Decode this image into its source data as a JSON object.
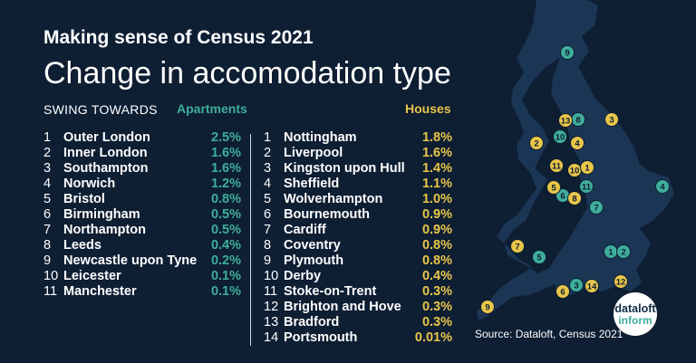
{
  "kicker": "Making sense of Census 2021",
  "headline": "Change in accomodation type",
  "swing_label": "SWING TOWARDS",
  "colors": {
    "background": "#0e1e33",
    "apartments": "#3fae9b",
    "houses": "#e8c64a",
    "map_fill": "#1b3654",
    "text": "#ffffff"
  },
  "apartments": {
    "header": "Apartments",
    "rows": [
      {
        "rank": "1",
        "name": "Outer London",
        "value": "2.5%"
      },
      {
        "rank": "2",
        "name": "Inner London",
        "value": "1.6%"
      },
      {
        "rank": "3",
        "name": "Southampton",
        "value": "1.6%"
      },
      {
        "rank": "4",
        "name": "Norwich",
        "value": "1.2%"
      },
      {
        "rank": "5",
        "name": "Bristol",
        "value": "0.8%"
      },
      {
        "rank": "6",
        "name": "Birmingham",
        "value": "0.5%"
      },
      {
        "rank": "7",
        "name": "Northampton",
        "value": "0.5%"
      },
      {
        "rank": "8",
        "name": "Leeds",
        "value": "0.4%"
      },
      {
        "rank": "9",
        "name": "Newcastle upon Tyne",
        "value": "0.2%"
      },
      {
        "rank": "10",
        "name": "Leicester",
        "value": "0.1%"
      },
      {
        "rank": "11",
        "name": "Manchester",
        "value": "0.1%"
      }
    ]
  },
  "houses": {
    "header": "Houses",
    "rows": [
      {
        "rank": "1",
        "name": "Nottingham",
        "value": "1.8%"
      },
      {
        "rank": "2",
        "name": "Liverpool",
        "value": "1.6%"
      },
      {
        "rank": "3",
        "name": "Kingston upon Hull",
        "value": "1.4%"
      },
      {
        "rank": "4",
        "name": "Sheffield",
        "value": "1.1%"
      },
      {
        "rank": "5",
        "name": "Wolverhampton",
        "value": "1.0%"
      },
      {
        "rank": "6",
        "name": "Bournemouth",
        "value": "0.9%"
      },
      {
        "rank": "7",
        "name": "Cardiff",
        "value": "0.9%"
      },
      {
        "rank": "8",
        "name": "Coventry",
        "value": "0.8%"
      },
      {
        "rank": "9",
        "name": "Plymouth",
        "value": "0.8%"
      },
      {
        "rank": "10",
        "name": "Derby",
        "value": "0.4%"
      },
      {
        "rank": "11",
        "name": "Stoke-on-Trent",
        "value": "0.3%"
      },
      {
        "rank": "12",
        "name": "Brighton and Hove",
        "value": "0.3%"
      },
      {
        "rank": "13",
        "name": "Bradford",
        "value": "0.3%"
      },
      {
        "rank": "14",
        "name": "Portsmouth",
        "value": "0.01%"
      }
    ]
  },
  "source": "Source: Dataloft, Census 2021",
  "logo": {
    "line1": "dataloft",
    "line2": "inform"
  }
}
